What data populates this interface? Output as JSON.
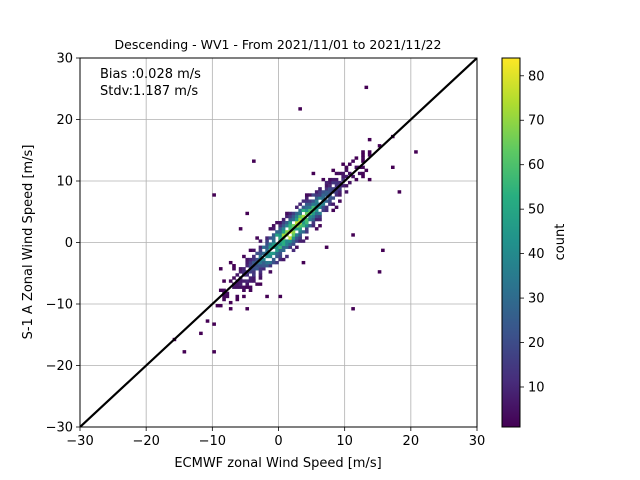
{
  "chart_data": {
    "type": "heatmap",
    "title": "Descending - WV1 - From 2021/11/01 to 2021/11/22",
    "xlabel": "ECMWF zonal Wind Speed [m/s]",
    "ylabel": "S-1 A Zonal Wind Speed [m/s]",
    "xlim": [
      -30,
      30
    ],
    "ylim": [
      -30,
      30
    ],
    "xticks": [
      "−30",
      "−20",
      "−10",
      "0",
      "10",
      "20",
      "30"
    ],
    "yticks": [
      "−30",
      "−20",
      "−10",
      "0",
      "10",
      "20",
      "30"
    ],
    "grid": true,
    "annotations": [
      "Bias :0.028 m/s",
      "Stdv:1.187 m/s"
    ],
    "reference_line": {
      "slope": 1,
      "intercept": 0,
      "color": "#000000"
    },
    "colorbar": {
      "label": "count",
      "range": [
        1,
        84
      ],
      "ticks": [
        "10",
        "20",
        "30",
        "40",
        "50",
        "60",
        "70",
        "80"
      ],
      "colormap": "viridis"
    },
    "density_cluster": {
      "along_diagonal_from": -16,
      "along_diagonal_to": 17,
      "peak_count": 84,
      "peak_location": [
        2,
        2
      ]
    },
    "outliers": [
      [
        3,
        21.5
      ],
      [
        13,
        25
      ],
      [
        12.5,
        13
      ],
      [
        5,
        11
      ],
      [
        -4,
        13
      ],
      [
        -5,
        4.5
      ],
      [
        11,
        1
      ],
      [
        15.5,
        -1.5
      ],
      [
        15,
        -5
      ],
      [
        -10,
        7.5
      ],
      [
        3.5,
        -3.5
      ],
      [
        11,
        -11
      ],
      [
        -10,
        -18
      ],
      [
        -12,
        -15
      ],
      [
        -3,
        -7
      ],
      [
        -2,
        -9
      ],
      [
        -5,
        -11
      ],
      [
        -16,
        -16
      ],
      [
        -14.5,
        -18
      ],
      [
        -6,
        2
      ],
      [
        7,
        -1
      ],
      [
        17,
        12
      ],
      [
        18,
        8
      ],
      [
        20.5,
        14.5
      ],
      [
        0,
        -9
      ],
      [
        -9,
        -4.5
      ]
    ]
  }
}
